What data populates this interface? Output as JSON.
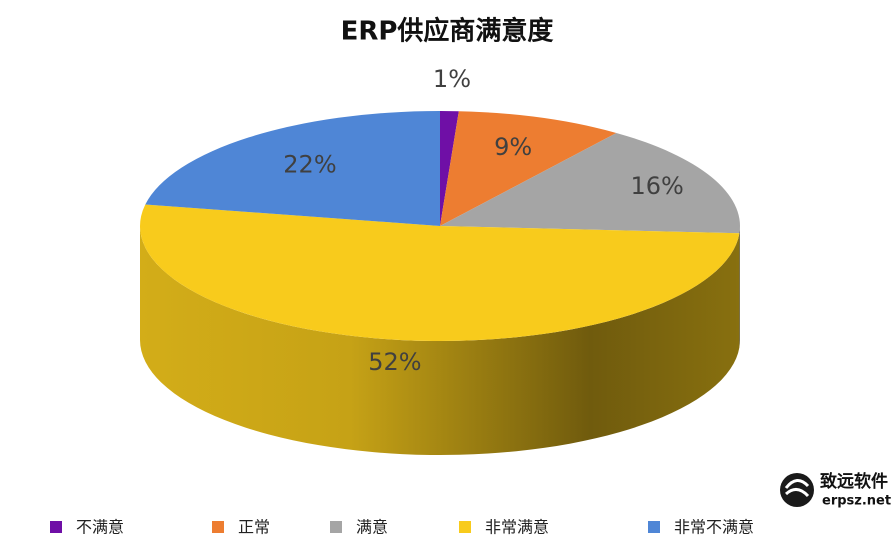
{
  "chart_data": {
    "type": "pie3d",
    "title": "ERP供应商满意度",
    "categories": [
      "不满意",
      "正常",
      "满意",
      "非常满意",
      "非常不满意"
    ],
    "values": [
      1,
      9,
      16,
      52,
      22
    ],
    "value_labels": [
      "1%",
      "9%",
      "16%",
      "52%",
      "22%"
    ],
    "colors": [
      "#6f0fa6",
      "#ed7d31",
      "#a5a5a5",
      "#f8cb1c",
      "#4f86d6"
    ],
    "legend": "bottom"
  },
  "watermark": {
    "brand": "致远软件",
    "url": "erpsz.net"
  }
}
